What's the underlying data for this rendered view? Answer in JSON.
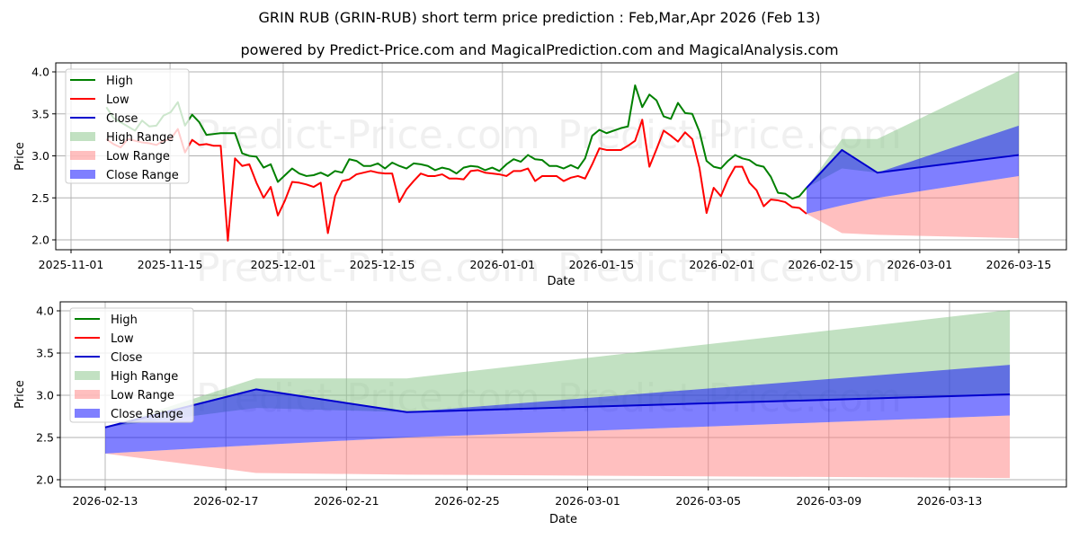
{
  "header": {
    "title": "GRIN RUB (GRIN-RUB) short term price prediction : Feb,Mar,Apr 2026 (Feb 13)",
    "subtitle": "powered by Predict-Price.com and MagicalPrediction.com and MagicalAnalysis.com"
  },
  "watermark": "Predict-Price.com",
  "colors": {
    "high": "#008000",
    "low": "#ff0000",
    "close": "#0000cd",
    "high_range": "#8fc98f",
    "low_range": "#ff8080",
    "close_range": "#0000ff"
  },
  "legend": {
    "items": [
      {
        "label": "High",
        "kind": "line",
        "color": "#008000"
      },
      {
        "label": "Low",
        "kind": "line",
        "color": "#ff0000"
      },
      {
        "label": "Close",
        "kind": "line",
        "color": "#0000cd"
      },
      {
        "label": "High Range",
        "kind": "patch",
        "color": "#8fc98f"
      },
      {
        "label": "Low Range",
        "kind": "patch",
        "color": "#ff8080"
      },
      {
        "label": "Close Range",
        "kind": "patch",
        "color": "#0000ff"
      }
    ]
  },
  "chart_data": [
    {
      "type": "line",
      "title": "GRIN RUB (GRIN-RUB) short term price prediction : Feb,Mar,Apr 2026 (Feb 13)",
      "xlabel": "Date",
      "ylabel": "Price",
      "ylim": [
        1.9,
        4.1
      ],
      "yticks": [
        "2.0",
        "2.5",
        "3.0",
        "3.5",
        "4.0"
      ],
      "xticks": [
        "2025-11-01",
        "2025-11-15",
        "2025-12-01",
        "2025-12-15",
        "2026-01-01",
        "2026-01-15",
        "2026-02-01",
        "2026-02-15",
        "2026-03-01",
        "2026-03-15"
      ],
      "grid": true,
      "legend_position": "upper left",
      "history_start": "2025-11-06",
      "series": [
        {
          "name": "High",
          "values": [
            3.58,
            3.45,
            3.4,
            3.35,
            3.3,
            3.42,
            3.35,
            3.36,
            3.48,
            3.52,
            3.64,
            3.36,
            3.49,
            3.4,
            3.25,
            3.26,
            3.27,
            3.27,
            3.27,
            3.03,
            3.0,
            2.99,
            2.86,
            2.9,
            2.69,
            2.77,
            2.85,
            2.79,
            2.76,
            2.77,
            2.8,
            2.76,
            2.82,
            2.8,
            2.96,
            2.94,
            2.88,
            2.88,
            2.91,
            2.85,
            2.92,
            2.88,
            2.85,
            2.91,
            2.9,
            2.88,
            2.83,
            2.86,
            2.84,
            2.79,
            2.86,
            2.88,
            2.87,
            2.83,
            2.86,
            2.82,
            2.9,
            2.96,
            2.93,
            3.01,
            2.96,
            2.95,
            2.88,
            2.88,
            2.85,
            2.89,
            2.85,
            2.97,
            3.24,
            3.31,
            3.27,
            3.3,
            3.33,
            3.35,
            3.84,
            3.58,
            3.73,
            3.66,
            3.47,
            3.44,
            3.63,
            3.51,
            3.5,
            3.29,
            2.94,
            2.87,
            2.85,
            2.94,
            3.01,
            2.97,
            2.95,
            2.89,
            2.87,
            2.75,
            2.56,
            2.55,
            2.49,
            2.52,
            2.62
          ]
        },
        {
          "name": "Low",
          "values": [
            3.2,
            3.14,
            3.1,
            3.2,
            3.18,
            3.16,
            3.15,
            3.13,
            3.18,
            3.2,
            3.32,
            3.04,
            3.19,
            3.13,
            3.14,
            3.12,
            3.12,
            1.99,
            2.97,
            2.88,
            2.9,
            2.68,
            2.5,
            2.63,
            2.29,
            2.47,
            2.69,
            2.68,
            2.66,
            2.63,
            2.68,
            2.08,
            2.52,
            2.7,
            2.72,
            2.78,
            2.8,
            2.82,
            2.8,
            2.79,
            2.79,
            2.45,
            2.6,
            2.7,
            2.79,
            2.76,
            2.76,
            2.78,
            2.73,
            2.73,
            2.72,
            2.82,
            2.83,
            2.8,
            2.79,
            2.78,
            2.76,
            2.82,
            2.82,
            2.85,
            2.7,
            2.76,
            2.76,
            2.76,
            2.7,
            2.74,
            2.76,
            2.73,
            2.9,
            3.09,
            3.07,
            3.07,
            3.07,
            3.12,
            3.18,
            3.43,
            2.87,
            3.08,
            3.3,
            3.24,
            3.17,
            3.28,
            3.2,
            2.86,
            2.32,
            2.62,
            2.52,
            2.72,
            2.87,
            2.87,
            2.68,
            2.59,
            2.4,
            2.48,
            2.47,
            2.45,
            2.39,
            2.38,
            2.31
          ]
        },
        {
          "name": "Close",
          "x": [
            "2026-02-13",
            "2026-02-18",
            "2026-02-23",
            "2026-03-15"
          ],
          "values": [
            2.62,
            3.07,
            2.8,
            3.01
          ]
        },
        {
          "name": "High Range",
          "x": [
            "2026-02-13",
            "2026-02-18",
            "2026-02-23",
            "2026-03-15"
          ],
          "upper": [
            2.62,
            3.2,
            3.2,
            4.01
          ],
          "lower": [
            2.62,
            2.85,
            2.8,
            3.01
          ]
        },
        {
          "name": "Close Range",
          "x": [
            "2026-02-13",
            "2026-02-18",
            "2026-02-23",
            "2026-03-15"
          ],
          "upper": [
            2.62,
            3.07,
            2.8,
            3.36
          ],
          "lower": [
            2.31,
            2.41,
            2.5,
            2.76
          ]
        },
        {
          "name": "Low Range",
          "x": [
            "2026-02-13",
            "2026-02-18",
            "2026-02-23",
            "2026-03-15"
          ],
          "upper": [
            2.31,
            2.41,
            2.5,
            2.76
          ],
          "lower": [
            2.31,
            2.08,
            2.06,
            2.02
          ]
        }
      ]
    },
    {
      "type": "line",
      "title": "",
      "xlabel": "Date",
      "ylabel": "Price",
      "ylim": [
        1.9,
        4.1
      ],
      "yticks": [
        "2.0",
        "2.5",
        "3.0",
        "3.5",
        "4.0"
      ],
      "xticks": [
        "2026-02-13",
        "2026-02-17",
        "2026-02-21",
        "2026-02-25",
        "2026-03-01",
        "2026-03-05",
        "2026-03-09",
        "2026-03-13"
      ],
      "grid": true,
      "legend_position": "upper left",
      "series": [
        {
          "name": "Close",
          "x": [
            "2026-02-13",
            "2026-02-18",
            "2026-02-23",
            "2026-03-15"
          ],
          "values": [
            2.62,
            3.07,
            2.8,
            3.01
          ]
        },
        {
          "name": "High Range",
          "x": [
            "2026-02-13",
            "2026-02-18",
            "2026-02-23",
            "2026-03-15"
          ],
          "upper": [
            2.62,
            3.2,
            3.2,
            4.01
          ],
          "lower": [
            2.62,
            2.85,
            2.8,
            3.01
          ]
        },
        {
          "name": "Close Range",
          "x": [
            "2026-02-13",
            "2026-02-18",
            "2026-02-23",
            "2026-03-15"
          ],
          "upper": [
            2.62,
            3.07,
            2.8,
            3.36
          ],
          "lower": [
            2.31,
            2.41,
            2.5,
            2.76
          ]
        },
        {
          "name": "Low Range",
          "x": [
            "2026-02-13",
            "2026-02-18",
            "2026-02-23",
            "2026-03-15"
          ],
          "upper": [
            2.31,
            2.41,
            2.5,
            2.76
          ],
          "lower": [
            2.31,
            2.08,
            2.06,
            2.02
          ]
        }
      ]
    }
  ]
}
